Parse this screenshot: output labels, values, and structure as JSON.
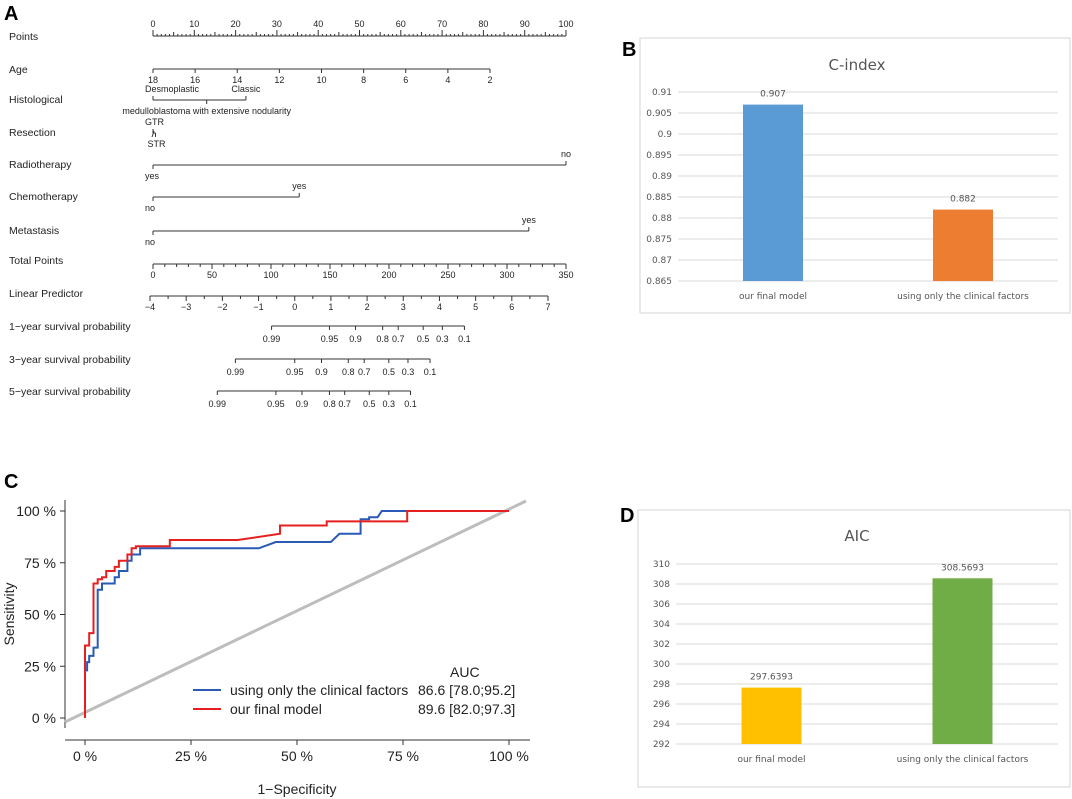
{
  "panel_labels": {
    "a": "A",
    "b": "B",
    "c": "C",
    "d": "D"
  },
  "chart_data": [
    {
      "type": "nomogram",
      "panel": "A",
      "points_scale": {
        "label": "Points",
        "ticks": [
          0,
          10,
          20,
          30,
          40,
          50,
          60,
          70,
          80,
          90,
          100
        ]
      },
      "variables": [
        {
          "label": "Age",
          "type": "numeric",
          "ticks": [
            {
              "t": "18",
              "p": 0
            },
            {
              "t": "16",
              "p": 10.2
            },
            {
              "t": "14",
              "p": 20.4
            },
            {
              "t": "12",
              "p": 30.6
            },
            {
              "t": "10",
              "p": 40.8
            },
            {
              "t": "8",
              "p": 51.0
            },
            {
              "t": "6",
              "p": 61.2
            },
            {
              "t": "4",
              "p": 71.4
            },
            {
              "t": "2",
              "p": 81.6
            }
          ]
        },
        {
          "label": "Histological",
          "type": "categorical",
          "levels": [
            {
              "t": "Desmoplastic",
              "p": 0,
              "pos": "above"
            },
            {
              "t": "Classic",
              "p": 22.5,
              "pos": "above"
            },
            {
              "t": "medulloblastoma with extensive nodularity",
              "p": 13,
              "pos": "below"
            }
          ]
        },
        {
          "label": "Resection",
          "type": "categorical",
          "levels": [
            {
              "t": "GTR",
              "p": 0,
              "pos": "above"
            },
            {
              "t": "STR",
              "p": 0.6,
              "pos": "below"
            }
          ]
        },
        {
          "label": "Radiotherapy",
          "type": "categorical",
          "levels": [
            {
              "t": "no",
              "p": 100,
              "pos": "above"
            },
            {
              "t": "yes",
              "p": 0,
              "pos": "below"
            }
          ]
        },
        {
          "label": "Chemotherapy",
          "type": "categorical",
          "levels": [
            {
              "t": "yes",
              "p": 35.4,
              "pos": "above"
            },
            {
              "t": "no",
              "p": 0,
              "pos": "below"
            }
          ]
        },
        {
          "label": "Metastasis",
          "type": "categorical",
          "levels": [
            {
              "t": "yes",
              "p": 91,
              "pos": "above"
            },
            {
              "t": "no",
              "p": 0,
              "pos": "below"
            }
          ]
        }
      ],
      "total_points": {
        "label": "Total Points",
        "ticks": [
          0,
          50,
          100,
          150,
          200,
          250,
          300,
          350
        ]
      },
      "linear_predictor": {
        "label": "Linear Predictor",
        "ticks": [
          -4,
          -3,
          -2,
          -1,
          0,
          1,
          2,
          3,
          4,
          5,
          6,
          7
        ],
        "tick_labels": [
          "−4",
          "−3",
          "−2",
          "−1",
          "0",
          "1",
          "2",
          "3",
          "4",
          "5",
          "6",
          "7"
        ]
      },
      "survival_scales": [
        {
          "label": "1−year survival probability",
          "ticks": [
            {
              "t": "0.99",
              "lp": -0.64
            },
            {
              "t": "0.95",
              "lp": 0.96
            },
            {
              "t": "0.9",
              "lp": 1.68
            },
            {
              "t": "0.8",
              "lp": 2.43
            },
            {
              "t": "0.7",
              "lp": 2.86
            },
            {
              "t": "0.5",
              "lp": 3.55
            },
            {
              "t": "0.3",
              "lp": 4.08
            },
            {
              "t": "0.1",
              "lp": 4.69
            }
          ]
        },
        {
          "label": "3−year survival probability",
          "ticks": [
            {
              "t": "0.99",
              "lp": -1.64
            },
            {
              "t": "0.95",
              "lp": 0.0
            },
            {
              "t": "0.9",
              "lp": 0.74
            },
            {
              "t": "0.8",
              "lp": 1.48
            },
            {
              "t": "0.7",
              "lp": 1.92
            },
            {
              "t": "0.5",
              "lp": 2.6
            },
            {
              "t": "0.3",
              "lp": 3.13
            },
            {
              "t": "0.1",
              "lp": 3.74
            }
          ]
        },
        {
          "label": "5−year survival probability",
          "ticks": [
            {
              "t": "0.99",
              "lp": -2.14
            },
            {
              "t": "0.95",
              "lp": -0.52
            },
            {
              "t": "0.9",
              "lp": 0.2
            },
            {
              "t": "0.8",
              "lp": 0.96
            },
            {
              "t": "0.7",
              "lp": 1.38
            },
            {
              "t": "0.5",
              "lp": 2.06
            },
            {
              "t": "0.3",
              "lp": 2.6
            },
            {
              "t": "0.1",
              "lp": 3.2
            }
          ]
        }
      ]
    },
    {
      "type": "bar",
      "panel": "B",
      "title": "C-index",
      "categories": [
        "our final model",
        "using only the clinical factors"
      ],
      "values": [
        0.907,
        0.882
      ],
      "value_labels": [
        "0.907",
        "0.882"
      ],
      "colors": [
        "#5b9bd5",
        "#ed7d31"
      ],
      "ylim": [
        0.865,
        0.91
      ],
      "yticks": [
        "0.865",
        "0.87",
        "0.875",
        "0.88",
        "0.885",
        "0.89",
        "0.895",
        "0.9",
        "0.905",
        "0.91"
      ]
    },
    {
      "type": "line",
      "panel": "C",
      "xlabel": "1−Specificity",
      "ylabel": "Sensitivity",
      "xticks": [
        "0 %",
        "25 %",
        "50 %",
        "75 %",
        "100 %"
      ],
      "yticks": [
        "0 %",
        "25 %",
        "50 %",
        "75 %",
        "100 %"
      ],
      "legend_title": "AUC",
      "series": [
        {
          "name": "using only the clinical factors",
          "auc": "86.6 [78.0;95.2]",
          "color": "#2a5ab8",
          "points": [
            [
              0,
              0
            ],
            [
              0,
              23
            ],
            [
              0.5,
              23
            ],
            [
              0.5,
              27
            ],
            [
              1,
              27
            ],
            [
              1,
              30
            ],
            [
              2,
              30
            ],
            [
              2,
              34
            ],
            [
              3,
              34
            ],
            [
              3,
              52
            ],
            [
              3,
              62
            ],
            [
              4,
              62
            ],
            [
              4,
              65
            ],
            [
              7,
              65
            ],
            [
              7,
              68
            ],
            [
              8,
              68
            ],
            [
              8,
              71
            ],
            [
              10,
              71
            ],
            [
              10,
              76
            ],
            [
              11,
              76
            ],
            [
              11,
              79
            ],
            [
              13,
              79
            ],
            [
              13,
              82
            ],
            [
              41,
              82
            ],
            [
              45,
              85
            ],
            [
              58,
              85
            ],
            [
              60,
              89
            ],
            [
              65,
              89
            ],
            [
              65,
              96
            ],
            [
              67,
              96
            ],
            [
              67,
              97
            ],
            [
              69,
              97
            ],
            [
              70,
              100
            ],
            [
              100,
              100
            ]
          ]
        },
        {
          "name": "our final model",
          "auc": "89.6 [82.0;97.3]",
          "color": "#e62020",
          "points": [
            [
              0,
              0
            ],
            [
              0,
              35
            ],
            [
              1,
              35
            ],
            [
              1,
              41
            ],
            [
              2,
              41
            ],
            [
              2,
              65
            ],
            [
              3,
              65
            ],
            [
              3,
              67
            ],
            [
              4,
              67
            ],
            [
              4,
              68
            ],
            [
              5,
              68
            ],
            [
              5,
              71
            ],
            [
              7,
              71
            ],
            [
              7,
              73
            ],
            [
              8,
              73
            ],
            [
              8,
              76
            ],
            [
              10,
              76
            ],
            [
              10,
              79
            ],
            [
              11,
              79
            ],
            [
              11,
              82
            ],
            [
              12,
              82
            ],
            [
              12,
              83
            ],
            [
              20,
              83
            ],
            [
              20,
              86
            ],
            [
              36,
              86
            ],
            [
              46,
              89
            ],
            [
              46,
              93
            ],
            [
              57,
              93
            ],
            [
              57,
              95
            ],
            [
              76,
              95
            ],
            [
              76,
              100
            ],
            [
              100,
              100
            ]
          ]
        }
      ]
    },
    {
      "type": "bar",
      "panel": "D",
      "title": "AIC",
      "categories": [
        "our final model",
        "using only the clinical factors"
      ],
      "values": [
        297.6393,
        308.5693
      ],
      "value_labels": [
        "297.6393",
        "308.5693"
      ],
      "colors": [
        "#ffc000",
        "#70ad47"
      ],
      "ylim": [
        292,
        310
      ],
      "yticks": [
        "292",
        "294",
        "296",
        "298",
        "300",
        "302",
        "304",
        "306",
        "308",
        "310"
      ]
    }
  ]
}
